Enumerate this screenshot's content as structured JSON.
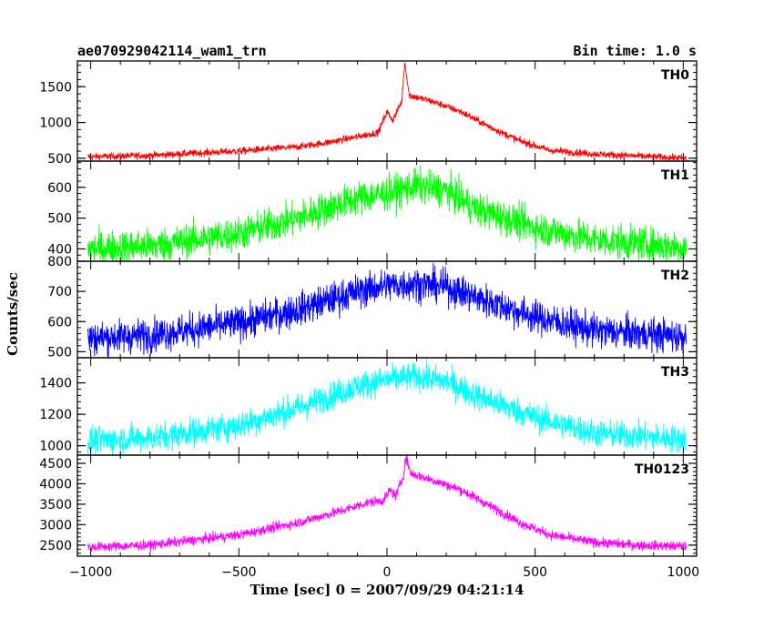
{
  "header": {
    "left": "ae070929042114_wam1_trn",
    "right": "Bin time: 1.0 s"
  },
  "chart_data": {
    "type": "line",
    "title": "ae070929042114_wam1_trn",
    "subtitle": "Bin time: 1.0 s",
    "xlabel": "Time [sec] 0 = 2007/09/29 04:21:14",
    "ylabel": "Counts/sec",
    "xlim": [
      -1045,
      1045
    ],
    "x_ticks": [
      -1000,
      -500,
      0,
      500,
      1000
    ],
    "x_tick_labels": [
      "−1000",
      "−500",
      "0",
      "500",
      "1000"
    ],
    "x_range_data": [
      -1010,
      1010
    ],
    "bin_time_s": 1.0,
    "series": [
      {
        "name": "TH0",
        "color": "#ff0000",
        "ylim": [
          460,
          1860
        ],
        "y_ticks": [
          500,
          1000,
          1500
        ],
        "baseline_start": 520,
        "baseline_end": 500,
        "noise": 25,
        "profile": [
          {
            "x": -1010,
            "y": 520
          },
          {
            "x": -800,
            "y": 540
          },
          {
            "x": -500,
            "y": 600
          },
          {
            "x": -300,
            "y": 660
          },
          {
            "x": -200,
            "y": 720
          },
          {
            "x": -100,
            "y": 800
          },
          {
            "x": -30,
            "y": 860
          },
          {
            "x": 0,
            "y": 1150
          },
          {
            "x": 20,
            "y": 1030
          },
          {
            "x": 50,
            "y": 1300
          },
          {
            "x": 60,
            "y": 1850
          },
          {
            "x": 75,
            "y": 1380
          },
          {
            "x": 150,
            "y": 1300
          },
          {
            "x": 250,
            "y": 1150
          },
          {
            "x": 350,
            "y": 930
          },
          {
            "x": 450,
            "y": 740
          },
          {
            "x": 550,
            "y": 610
          },
          {
            "x": 700,
            "y": 560
          },
          {
            "x": 850,
            "y": 530
          },
          {
            "x": 1010,
            "y": 500
          }
        ]
      },
      {
        "name": "TH1",
        "color": "#00ff00",
        "ylim": [
          360,
          685
        ],
        "y_ticks": [
          400,
          500,
          600
        ],
        "noise": 28,
        "profile": [
          {
            "x": -1010,
            "y": 400
          },
          {
            "x": -800,
            "y": 410
          },
          {
            "x": -500,
            "y": 450
          },
          {
            "x": -300,
            "y": 500
          },
          {
            "x": -100,
            "y": 565
          },
          {
            "x": 0,
            "y": 580
          },
          {
            "x": 100,
            "y": 605
          },
          {
            "x": 200,
            "y": 590
          },
          {
            "x": 300,
            "y": 530
          },
          {
            "x": 500,
            "y": 470
          },
          {
            "x": 700,
            "y": 430
          },
          {
            "x": 1010,
            "y": 405
          }
        ]
      },
      {
        "name": "TH2",
        "color": "#0000ff",
        "ylim": [
          480,
          800
        ],
        "y_ticks": [
          500,
          600,
          700,
          800
        ],
        "noise": 28,
        "profile": [
          {
            "x": -1010,
            "y": 545
          },
          {
            "x": -800,
            "y": 555
          },
          {
            "x": -500,
            "y": 595
          },
          {
            "x": -300,
            "y": 640
          },
          {
            "x": -100,
            "y": 700
          },
          {
            "x": 0,
            "y": 720
          },
          {
            "x": 100,
            "y": 725
          },
          {
            "x": 200,
            "y": 715
          },
          {
            "x": 300,
            "y": 680
          },
          {
            "x": 500,
            "y": 615
          },
          {
            "x": 700,
            "y": 570
          },
          {
            "x": 1010,
            "y": 550
          }
        ]
      },
      {
        "name": "TH3",
        "color": "#00ffff",
        "ylim": [
          940,
          1560
        ],
        "y_ticks": [
          1000,
          1200,
          1400
        ],
        "noise": 45,
        "profile": [
          {
            "x": -1010,
            "y": 1030
          },
          {
            "x": -800,
            "y": 1050
          },
          {
            "x": -500,
            "y": 1130
          },
          {
            "x": -300,
            "y": 1240
          },
          {
            "x": -100,
            "y": 1380
          },
          {
            "x": 0,
            "y": 1420
          },
          {
            "x": 100,
            "y": 1440
          },
          {
            "x": 200,
            "y": 1410
          },
          {
            "x": 300,
            "y": 1320
          },
          {
            "x": 500,
            "y": 1180
          },
          {
            "x": 700,
            "y": 1080
          },
          {
            "x": 1010,
            "y": 1040
          }
        ]
      },
      {
        "name": "TH0123",
        "color": "#ff00ff",
        "ylim": [
          2230,
          4700
        ],
        "y_ticks": [
          2500,
          3000,
          3500,
          4000,
          4500
        ],
        "noise": 60,
        "profile": [
          {
            "x": -1010,
            "y": 2450
          },
          {
            "x": -800,
            "y": 2500
          },
          {
            "x": -500,
            "y": 2750
          },
          {
            "x": -300,
            "y": 3050
          },
          {
            "x": -150,
            "y": 3350
          },
          {
            "x": -60,
            "y": 3550
          },
          {
            "x": -10,
            "y": 3600
          },
          {
            "x": 10,
            "y": 3850
          },
          {
            "x": 30,
            "y": 3700
          },
          {
            "x": 55,
            "y": 4200
          },
          {
            "x": 65,
            "y": 4650
          },
          {
            "x": 80,
            "y": 4250
          },
          {
            "x": 150,
            "y": 4100
          },
          {
            "x": 250,
            "y": 3850
          },
          {
            "x": 350,
            "y": 3450
          },
          {
            "x": 450,
            "y": 3050
          },
          {
            "x": 550,
            "y": 2750
          },
          {
            "x": 700,
            "y": 2570
          },
          {
            "x": 850,
            "y": 2500
          },
          {
            "x": 1010,
            "y": 2470
          }
        ]
      }
    ]
  }
}
